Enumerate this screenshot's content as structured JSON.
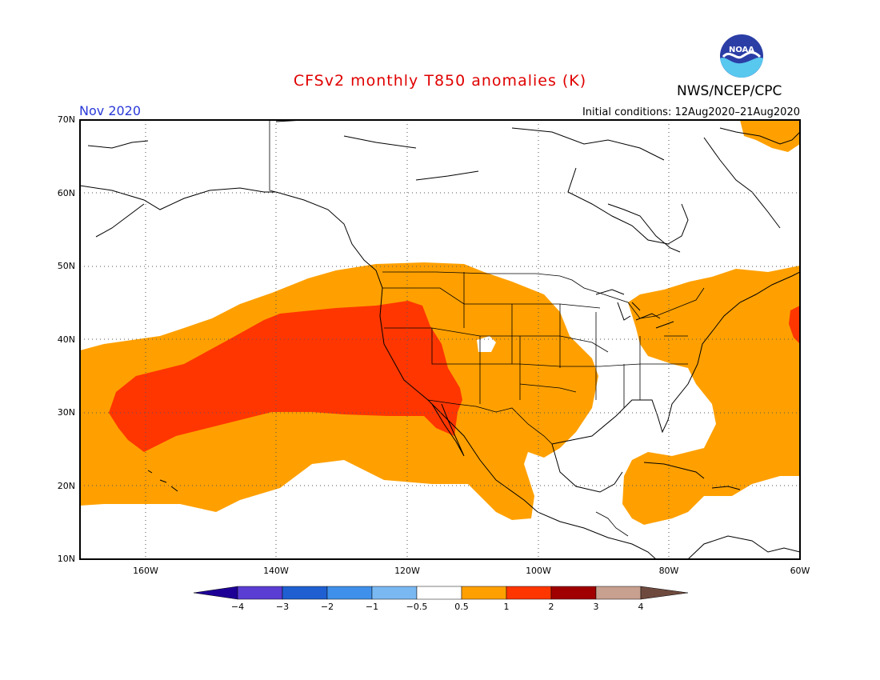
{
  "title": "CFSv2 monthly T850 anomalies (K)",
  "agency": "NWS/NCEP/CPC",
  "logo_text": "NOAA",
  "month": "Nov 2020",
  "initial_conditions": "Initial conditions: 12Aug2020–21Aug2020",
  "lat_labels": [
    "70N",
    "60N",
    "50N",
    "40N",
    "30N",
    "20N",
    "10N"
  ],
  "lon_labels": [
    "160W",
    "140W",
    "120W",
    "100W",
    "80W",
    "60W"
  ],
  "colorbar": {
    "ticks": [
      "−4",
      "−3",
      "−2",
      "−1",
      "−0.5",
      "0.5",
      "1",
      "2",
      "3",
      "4"
    ],
    "colors": [
      "#1e0096",
      "#5a3dd2",
      "#1f5fd1",
      "#3f90ea",
      "#7ab8f2",
      "#ffffff",
      "#ffa000",
      "#ff3600",
      "#a00000",
      "#c8a090",
      "#6e4a3e"
    ]
  },
  "map_data": {
    "variable": "T850 anomaly",
    "units": "K",
    "domain": {
      "lon_range": [
        "172W",
        "60W"
      ],
      "lat_range": [
        "10N",
        "70N"
      ]
    },
    "regions": [
      {
        "anomaly": "0.5 to 1",
        "color": "#ffa000",
        "area": "Northeast Pacific, western and central United States, Mexico"
      },
      {
        "anomaly": "1 to 2",
        "color": "#ff3600",
        "area": "Subtropical Northeast Pacific to US Southwest"
      },
      {
        "anomaly": "0.5 to 1",
        "color": "#ffa000",
        "area": "Great Lakes, Northeast US, western Atlantic, Caribbean"
      },
      {
        "anomaly": "1 to 2",
        "color": "#ff3600",
        "area": "Off Nova Scotia"
      }
    ]
  }
}
